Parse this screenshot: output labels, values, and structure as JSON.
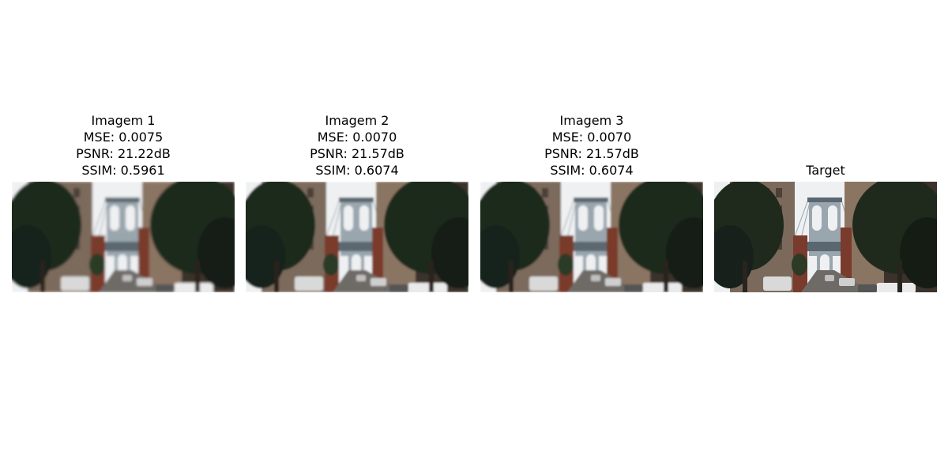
{
  "panels": [
    {
      "lines": [
        "Imagem 1",
        "MSE: 0.0075",
        "PSNR: 21.22dB",
        "SSIM: 0.5961"
      ],
      "blur": 1.6
    },
    {
      "lines": [
        "Imagem 2",
        "MSE: 0.0070",
        "PSNR: 21.57dB",
        "SSIM: 0.6074"
      ],
      "blur": 1.4
    },
    {
      "lines": [
        "Imagem 3",
        "MSE: 0.0070",
        "PSNR: 21.57dB",
        "SSIM: 0.6074"
      ],
      "blur": 1.4
    },
    {
      "lines": [
        "Target"
      ],
      "blur": 0
    }
  ],
  "scene": {
    "colors": {
      "sky": "#eef0f2",
      "bridge": "#9aa6ae",
      "bridge_dark": "#5b6770",
      "building_left": "#7b6a5c",
      "building_right": "#8a7462",
      "brick": "#7a3a2c",
      "tree": "#1f2a1c",
      "street": "#6e6a66",
      "cars": "#d9d9d9"
    }
  }
}
